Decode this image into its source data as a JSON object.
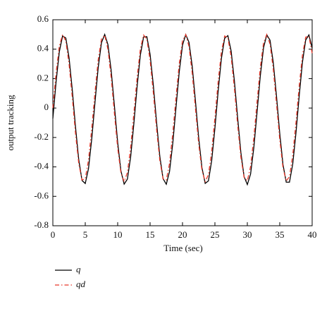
{
  "chart_data": {
    "type": "line",
    "xlabel": "Time (sec)",
    "ylabel": "output tracking",
    "x": [
      0,
      0.5,
      1,
      1.5,
      2,
      2.5,
      3,
      3.5,
      4,
      4.5,
      5,
      5.5,
      6,
      6.5,
      7,
      7.5,
      8,
      8.5,
      9,
      9.5,
      10,
      10.5,
      11,
      11.5,
      12,
      12.5,
      13,
      13.5,
      14,
      14.5,
      15,
      15.5,
      16,
      16.5,
      17,
      17.5,
      18,
      18.5,
      19,
      19.5,
      20,
      20.5,
      21,
      21.5,
      22,
      22.5,
      23,
      23.5,
      24,
      24.5,
      25,
      25.5,
      26,
      26.5,
      27,
      27.5,
      28,
      28.5,
      29,
      29.5,
      30,
      30.5,
      31,
      31.5,
      32,
      32.5,
      33,
      33.5,
      34,
      34.5,
      35,
      35.5,
      36,
      36.5,
      37,
      37.5,
      38,
      38.5,
      39,
      39.5,
      40
    ],
    "series": [
      {
        "name": "q",
        "color": "#000000",
        "dash": "solid",
        "values": [
          -0.071,
          0.179,
          0.383,
          0.49,
          0.476,
          0.342,
          0.122,
          -0.131,
          -0.353,
          -0.492,
          -0.513,
          -0.411,
          -0.21,
          0.039,
          0.277,
          0.444,
          0.5,
          0.431,
          0.254,
          0.013,
          -0.234,
          -0.427,
          -0.517,
          -0.483,
          -0.333,
          -0.104,
          0.147,
          0.361,
          0.483,
          0.485,
          0.365,
          0.155,
          -0.097,
          -0.328,
          -0.48,
          -0.518,
          -0.431,
          -0.24,
          0.006,
          0.247,
          0.427,
          0.499,
          0.447,
          0.283,
          0.046,
          -0.204,
          -0.406,
          -0.512,
          -0.495,
          -0.358,
          -0.137,
          0.115,
          0.337,
          0.474,
          0.492,
          0.388,
          0.186,
          -0.064,
          -0.301,
          -0.466,
          -0.52,
          -0.449,
          -0.27,
          -0.028,
          0.218,
          0.41,
          0.497,
          0.461,
          0.31,
          0.08,
          -0.172,
          -0.384,
          -0.504,
          -0.504,
          -0.382,
          -0.17,
          0.082,
          0.311,
          0.462,
          0.497,
          0.408
        ]
      },
      {
        "name": "qd",
        "color": "#e8382a",
        "dash": "dashdot",
        "values": [
          0,
          0.24,
          0.421,
          0.499,
          0.455,
          0.299,
          0.071,
          -0.176,
          -0.379,
          -0.489,
          -0.48,
          -0.353,
          -0.14,
          0.108,
          0.329,
          0.469,
          0.495,
          0.399,
          0.206,
          -0.038,
          -0.272,
          -0.44,
          -0.5,
          -0.438,
          -0.269,
          -0.033,
          0.21,
          0.402,
          0.496,
          0.468,
          0.325,
          0.104,
          -0.144,
          -0.356,
          -0.481,
          -0.489,
          -0.376,
          -0.171,
          0.075,
          0.302,
          0.457,
          0.499,
          0.419,
          0.236,
          -0.005,
          -0.244,
          -0.423,
          -0.499,
          -0.453,
          -0.296,
          -0.066,
          0.18,
          0.382,
          0.49,
          0.478,
          0.35,
          0.136,
          -0.112,
          -0.332,
          -0.471,
          -0.494,
          -0.397,
          -0.202,
          0.042,
          0.276,
          0.443,
          0.5,
          0.435,
          0.265,
          0.029,
          -0.214,
          -0.405,
          -0.496,
          -0.466,
          -0.322,
          -0.099,
          0.148,
          0.359,
          0.482,
          0.488,
          0.373
        ]
      }
    ],
    "xlim": [
      0,
      40
    ],
    "xticks": [
      0,
      5,
      10,
      15,
      20,
      25,
      30,
      35,
      40
    ],
    "ylim": [
      -0.8,
      0.6
    ],
    "yticks": [
      -0.8,
      -0.6,
      -0.4,
      -0.2,
      0,
      0.2,
      0.4,
      0.6
    ],
    "grid": false,
    "legend": "bottom-left"
  }
}
